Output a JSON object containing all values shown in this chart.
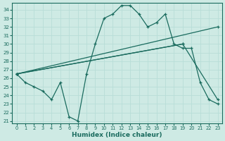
{
  "xlabel": "Humidex (Indice chaleur)",
  "xlim": [
    -0.5,
    23.5
  ],
  "ylim": [
    20.7,
    34.8
  ],
  "yticks": [
    21,
    22,
    23,
    24,
    25,
    26,
    27,
    28,
    29,
    30,
    31,
    32,
    33,
    34
  ],
  "xticks": [
    0,
    1,
    2,
    3,
    4,
    5,
    6,
    7,
    8,
    9,
    10,
    11,
    12,
    13,
    14,
    15,
    16,
    17,
    18,
    19,
    20,
    21,
    22,
    23
  ],
  "bg_color": "#ceeae4",
  "line_color": "#1a6b5e",
  "grid_color": "#b8ddd7",
  "line1_x": [
    0,
    1,
    2,
    3,
    4,
    5,
    6,
    7,
    8,
    9,
    10,
    11,
    12,
    13,
    14,
    15,
    16,
    17,
    18,
    19,
    20,
    21,
    22,
    23
  ],
  "line1_y": [
    26.5,
    25.5,
    25.0,
    24.5,
    23.5,
    25.5,
    21.5,
    21.0,
    26.5,
    30.0,
    33.0,
    33.5,
    34.5,
    34.5,
    33.5,
    32.0,
    32.5,
    33.5,
    30.0,
    29.5,
    29.5,
    25.5,
    23.5,
    23.0
  ],
  "line2_x": [
    0,
    19
  ],
  "line2_y": [
    26.5,
    30.0
  ],
  "line3_x": [
    0,
    19,
    23
  ],
  "line3_y": [
    26.5,
    30.0,
    23.5
  ],
  "line4_x": [
    0,
    23
  ],
  "line4_y": [
    26.5,
    32.0
  ]
}
